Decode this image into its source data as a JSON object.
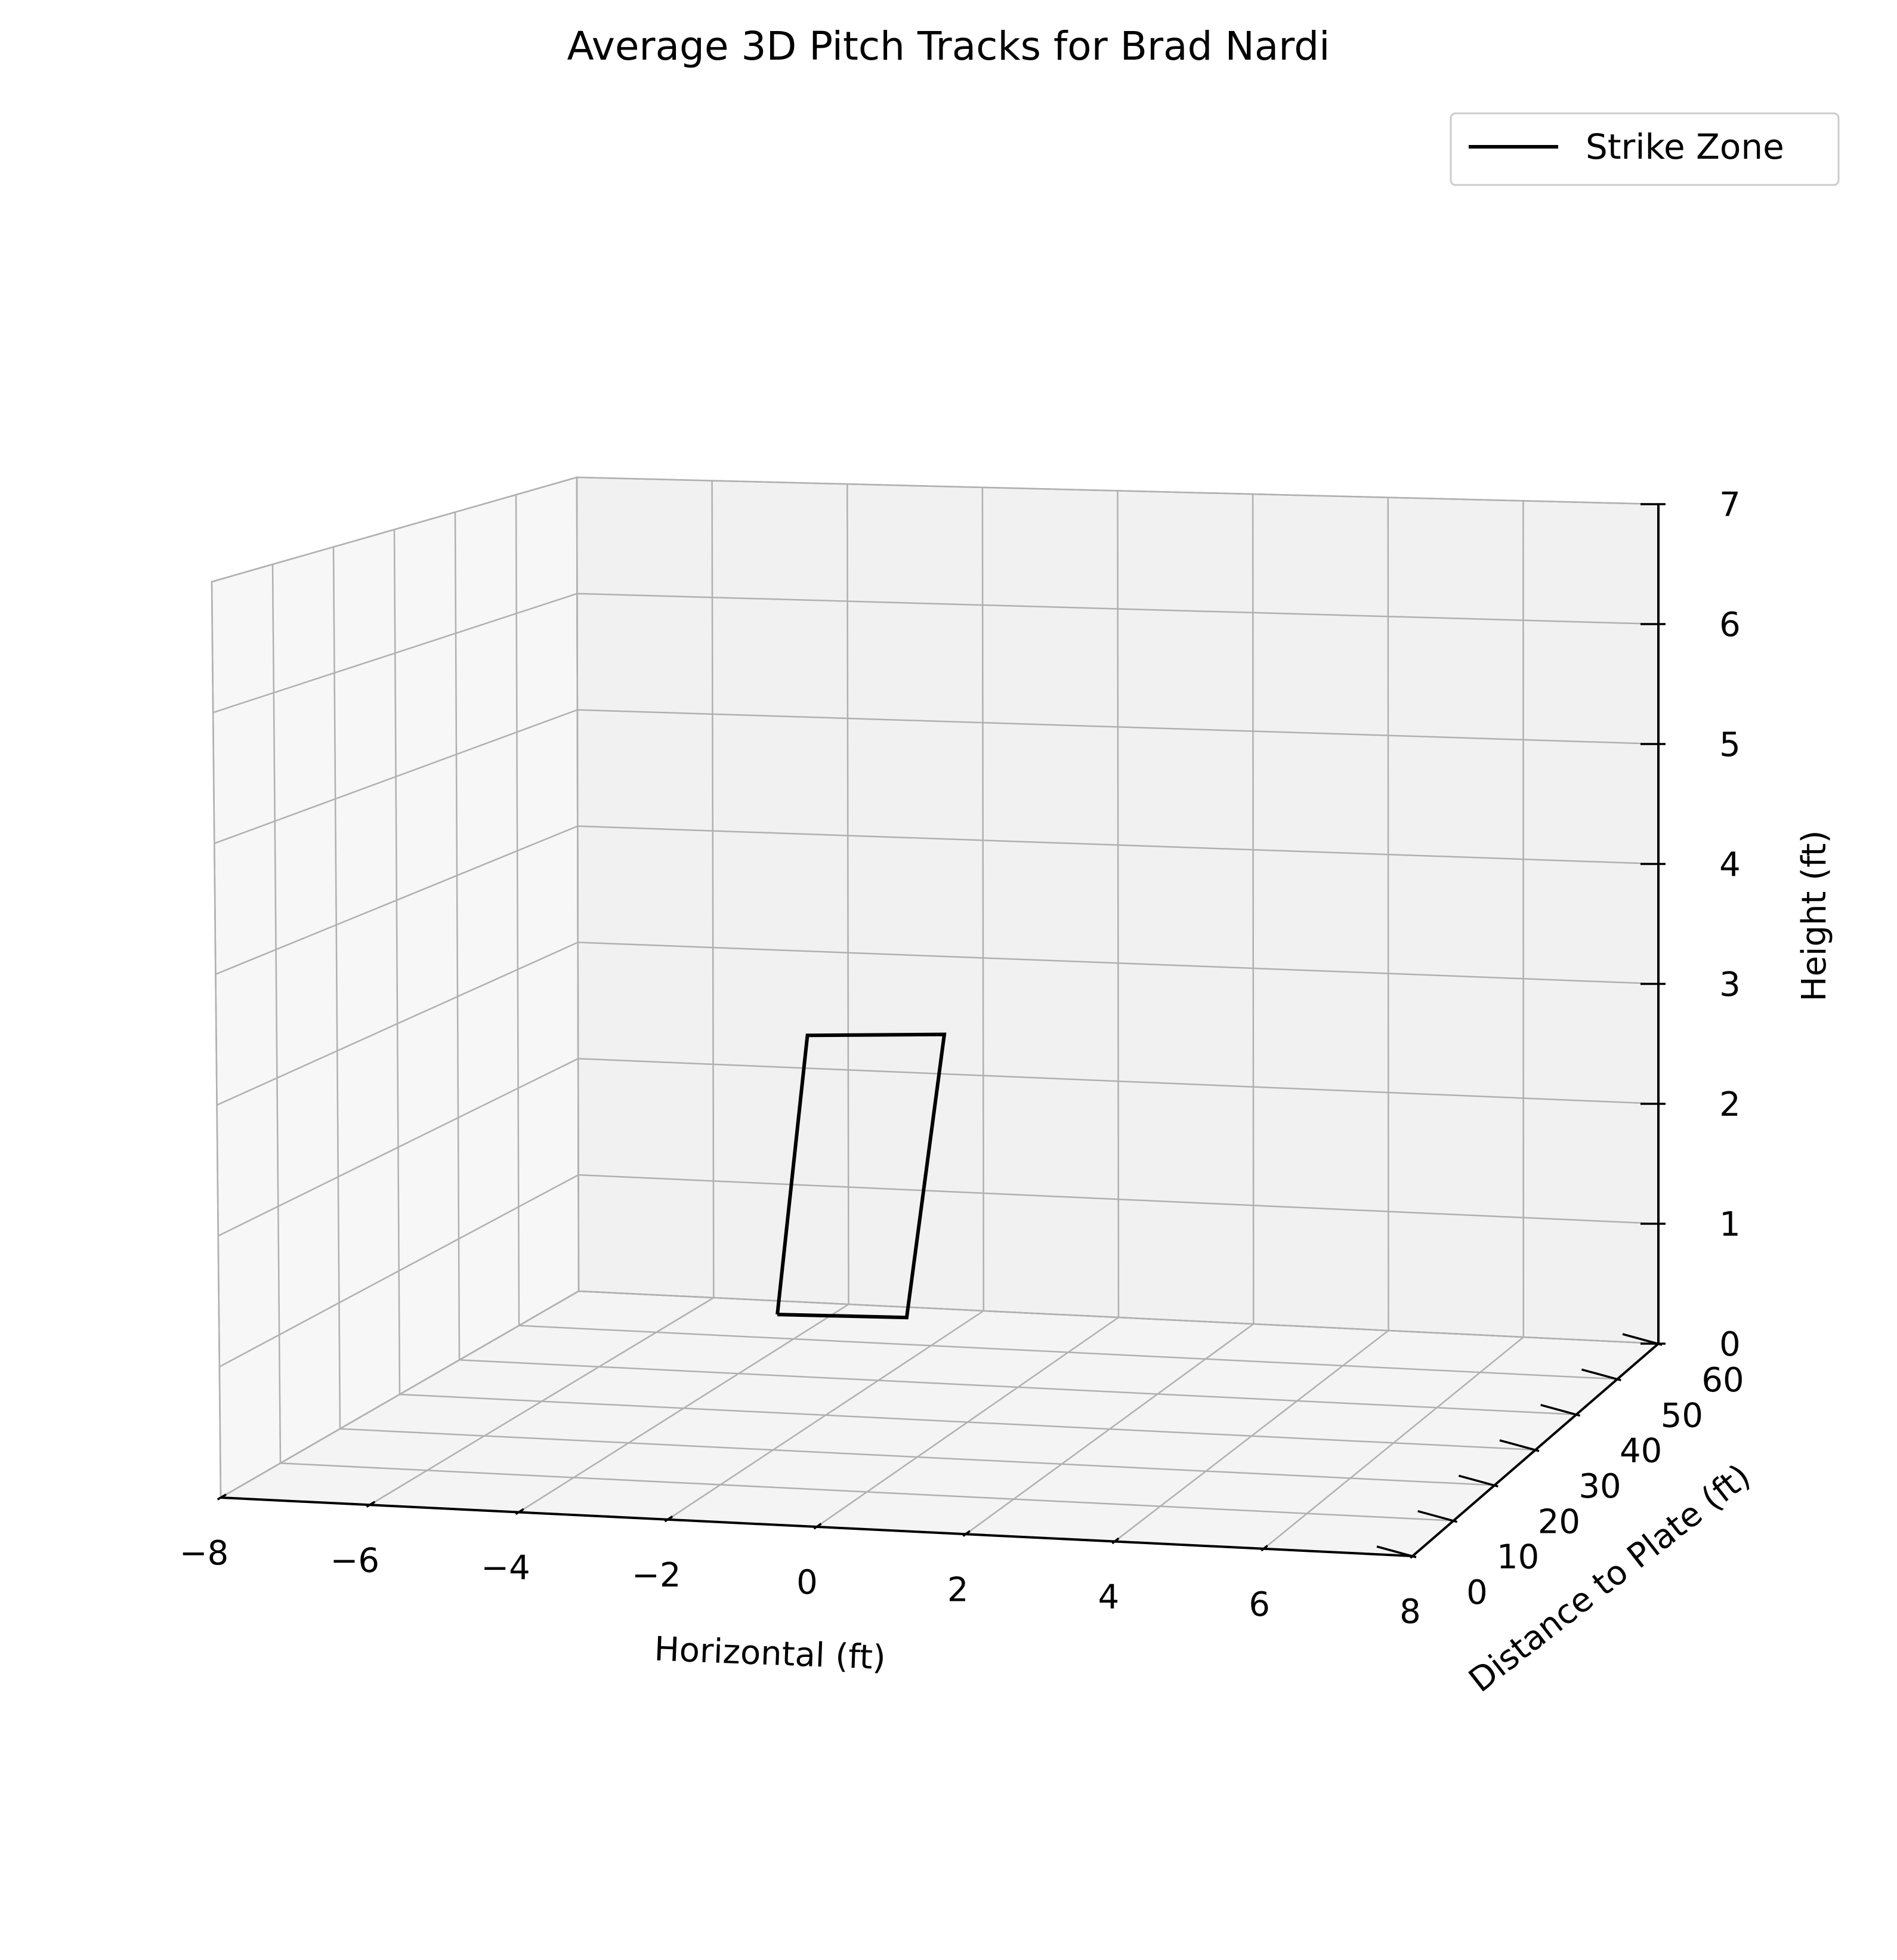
{
  "chart_data": {
    "type": "line",
    "projection": "3d",
    "title": "Average 3D Pitch Tracks for Brad Nardi",
    "xlabel": "Horizontal (ft)",
    "ylabel": "Distance to Plate (ft)",
    "zlabel": "Height (ft)",
    "xlim": [
      -8,
      8
    ],
    "ylim": [
      0,
      60
    ],
    "zlim": [
      0,
      7
    ],
    "xticks": [
      "−8",
      "−6",
      "−4",
      "−2",
      "0",
      "2",
      "4",
      "6",
      "8"
    ],
    "yticks": [
      "0",
      "10",
      "20",
      "30",
      "40",
      "50",
      "60"
    ],
    "zticks": [
      "0",
      "1",
      "2",
      "3",
      "4",
      "5",
      "6",
      "7"
    ],
    "grid": true,
    "legend_position": "top-right",
    "series": [
      {
        "name": "Strike Zone",
        "color": "#000000",
        "x": [
          -0.83,
          0.83,
          0.83,
          -0.83,
          -0.83
        ],
        "y": [
          0,
          0,
          0,
          0,
          0
        ],
        "z": [
          1.5,
          1.5,
          3.5,
          3.5,
          1.5
        ]
      }
    ]
  }
}
